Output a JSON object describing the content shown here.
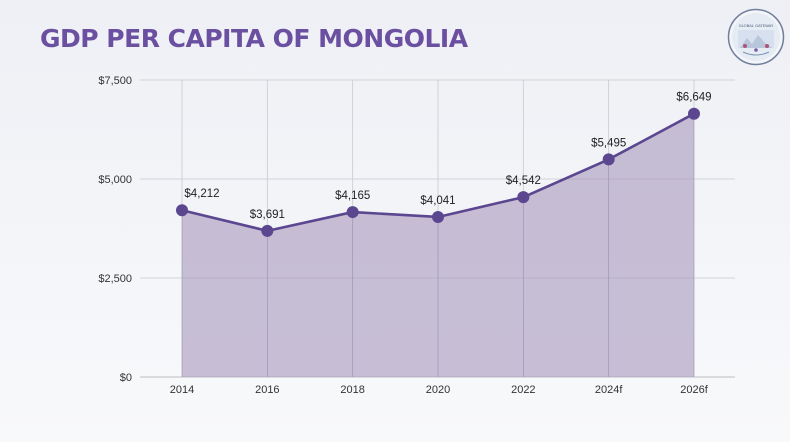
{
  "title": "GDP PER CAPITA OF MONGOLIA",
  "logo_text": "GLOBAL GATEWAY",
  "colors": {
    "title": "#6b4fa0",
    "line": "#5b4690",
    "fill": "#a99bbf",
    "grid": "#c9c9cf"
  },
  "chart_data": {
    "type": "area",
    "title": "GDP PER CAPITA OF MONGOLIA",
    "xlabel": "",
    "ylabel": "",
    "categories": [
      "2014",
      "2016",
      "2018",
      "2020",
      "2022",
      "2024f",
      "2026f"
    ],
    "values": [
      4212,
      3691,
      4165,
      4041,
      4542,
      5495,
      6649
    ],
    "data_labels": [
      "$4,212",
      "$3,691",
      "$4,165",
      "$4,041",
      "$4,542",
      "$5,495",
      "$6,649"
    ],
    "ylim": [
      0,
      7500
    ],
    "yticks": [
      0,
      2500,
      5000,
      7500
    ],
    "ytick_labels": [
      "$0",
      "$2,500",
      "$5,000",
      "$7,500"
    ],
    "grid": true,
    "legend": "none"
  }
}
